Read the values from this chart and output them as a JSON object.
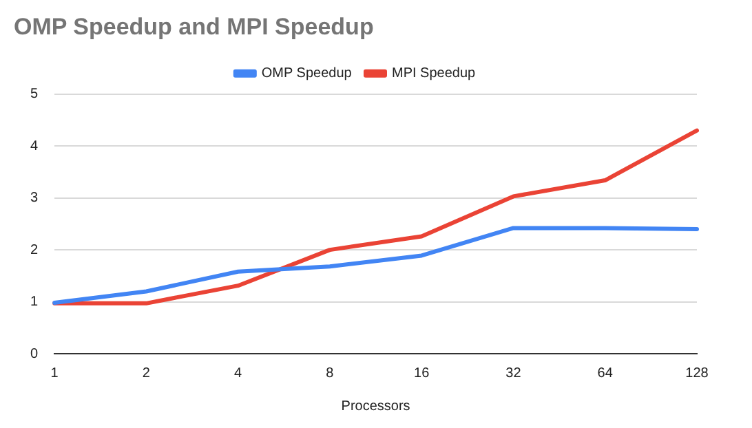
{
  "chart_data": {
    "type": "line",
    "title": "OMP Speedup and MPI Speedup",
    "xlabel": "Processors",
    "categories": [
      "1",
      "2",
      "4",
      "8",
      "16",
      "32",
      "64",
      "128"
    ],
    "series": [
      {
        "name": "OMP Speedup",
        "color": "#4285f4",
        "values": [
          0.98,
          1.2,
          1.58,
          1.68,
          1.89,
          2.42,
          2.42,
          2.4
        ]
      },
      {
        "name": "MPI Speedup",
        "color": "#ea4335",
        "values": [
          0.97,
          0.97,
          1.31,
          2.0,
          2.26,
          3.03,
          3.34,
          4.3
        ]
      }
    ],
    "ylim": [
      0,
      5
    ],
    "yticks": [
      0,
      1,
      2,
      3,
      4,
      5
    ],
    "grid": "y",
    "legend": "top",
    "marker": "none",
    "line_style": "solid"
  }
}
